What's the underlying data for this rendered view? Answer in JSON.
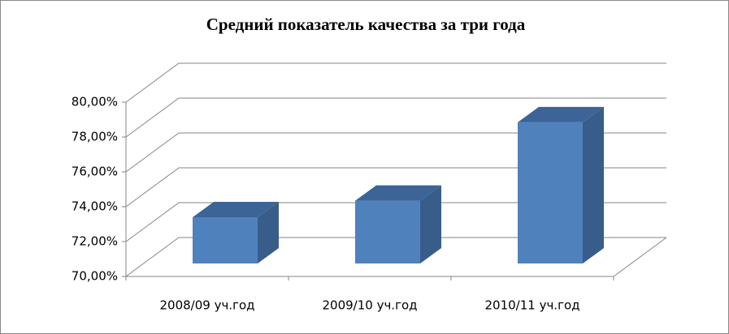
{
  "chart_data": {
    "type": "bar3d",
    "title": "Средний показатель качества за три года",
    "categories": [
      "2008/09 уч.год",
      "2009/10 уч.год",
      "2010/11 уч.год"
    ],
    "values": [
      72.65,
      73.6,
      78.1
    ],
    "color": "#4f81bd",
    "ylim": [
      70,
      80
    ],
    "yticks": [
      {
        "value": 70,
        "label": "70,00%"
      },
      {
        "value": 72,
        "label": "72,00%"
      },
      {
        "value": 74,
        "label": "74,00%"
      },
      {
        "value": 76,
        "label": "76,00%"
      },
      {
        "value": 78,
        "label": "78,00%"
      },
      {
        "value": 80,
        "label": "80,00%"
      }
    ],
    "grid": true
  }
}
